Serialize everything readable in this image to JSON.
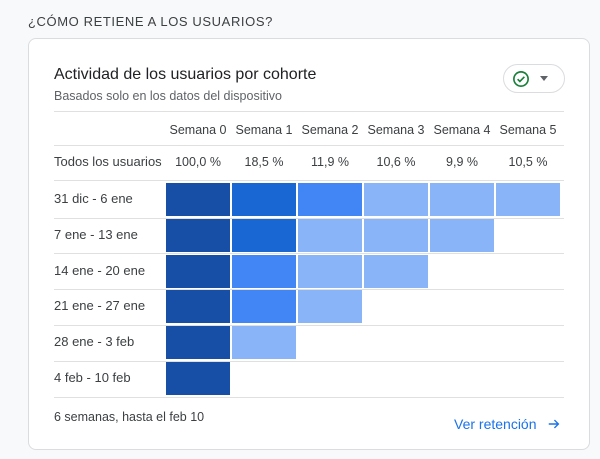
{
  "section": {
    "title": "¿CÓMO RETIENE A LOS USUARIOS?"
  },
  "card": {
    "title": "Actividad de los usuarios por cohorte",
    "subtitle": "Basados solo en los datos del dispositivo",
    "status_icon": "check-circle-icon",
    "status_color": "#188038",
    "dropdown_icon": "caret-down-icon"
  },
  "table": {
    "columns": [
      "Semana 0",
      "Semana 1",
      "Semana 2",
      "Semana 3",
      "Semana 4",
      "Semana 5"
    ],
    "total": {
      "label": "Todos los usuarios",
      "values": [
        "100,0 %",
        "18,5 %",
        "11,9 %",
        "10,6 %",
        "9,9 %",
        "10,5 %"
      ]
    },
    "rows": [
      {
        "label": "31 dic - 6 ene",
        "cells": [
          "#174ea6",
          "#1967d2",
          "#4285f4",
          "#8ab4f8",
          "#8ab4f8",
          "#8ab4f8"
        ]
      },
      {
        "label": "7 ene - 13 ene",
        "cells": [
          "#174ea6",
          "#1967d2",
          "#8ab4f8",
          "#8ab4f8",
          "#8ab4f8"
        ]
      },
      {
        "label": "14 ene - 20 ene",
        "cells": [
          "#174ea6",
          "#4285f4",
          "#8ab4f8",
          "#8ab4f8"
        ]
      },
      {
        "label": "21 ene - 27 ene",
        "cells": [
          "#174ea6",
          "#4285f4",
          "#8ab4f8"
        ]
      },
      {
        "label": "28 ene - 3 feb",
        "cells": [
          "#174ea6",
          "#8ab4f8"
        ]
      },
      {
        "label": "4 feb - 10 feb",
        "cells": [
          "#174ea6"
        ]
      }
    ]
  },
  "footer": {
    "note": "6 semanas, hasta el feb 10",
    "link_label": "Ver retención",
    "link_icon": "arrow-right-icon",
    "link_color": "#1a73e8"
  }
}
